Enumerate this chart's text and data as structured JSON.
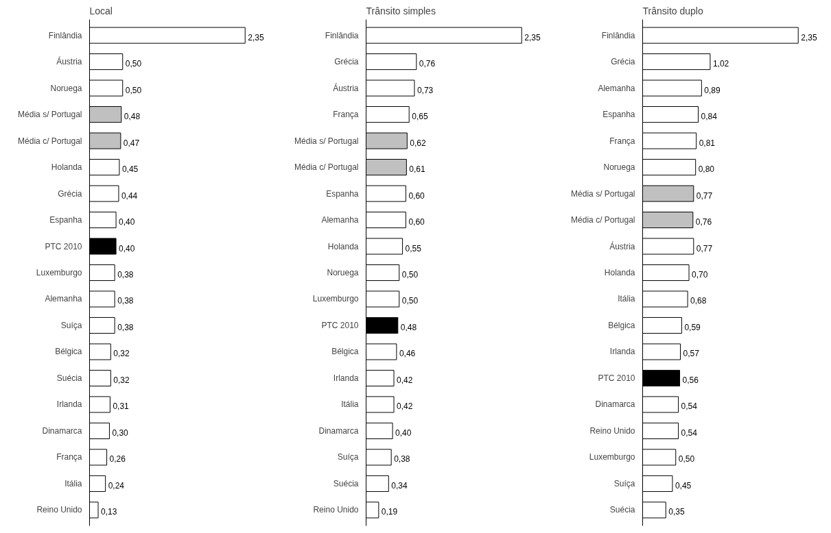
{
  "chart_data": [
    {
      "type": "bar",
      "orientation": "horizontal",
      "title": "Local",
      "categories": [
        "Finlândia",
        "Áustria",
        "Noruega",
        "Média s/ Portugal",
        "Média c/ Portugal",
        "Holanda",
        "Grécia",
        "Espanha",
        "PTC 2010",
        "Luxemburgo",
        "Alemanha",
        "Suíça",
        "Bélgica",
        "Suécia",
        "Irlanda",
        "Dinamarca",
        "França",
        "Itália",
        "Reino Unido"
      ],
      "values": [
        2.35,
        0.5,
        0.5,
        0.48,
        0.47,
        0.45,
        0.44,
        0.4,
        0.4,
        0.38,
        0.38,
        0.38,
        0.32,
        0.32,
        0.31,
        0.3,
        0.26,
        0.24,
        0.13
      ],
      "value_labels": [
        "2,35",
        "0,50",
        "0,50",
        "0,48",
        "0,47",
        "0,45",
        "0,44",
        "0,40",
        "0,40",
        "0,38",
        "0,38",
        "0,38",
        "0,32",
        "0,32",
        "0,31",
        "0,30",
        "0,26",
        "0,24",
        "0,13"
      ],
      "colors": [
        "#ffffff",
        "#ffffff",
        "#ffffff",
        "#c0c0c0",
        "#c0c0c0",
        "#ffffff",
        "#ffffff",
        "#ffffff",
        "#000000",
        "#ffffff",
        "#ffffff",
        "#ffffff",
        "#ffffff",
        "#ffffff",
        "#ffffff",
        "#ffffff",
        "#ffffff",
        "#ffffff",
        "#ffffff"
      ]
    },
    {
      "type": "bar",
      "orientation": "horizontal",
      "title": "Trânsito simples",
      "categories": [
        "Finlândia",
        "Grécia",
        "Áustria",
        "França",
        "Média s/ Portugal",
        "Média c/ Portugal",
        "Espanha",
        "Alemanha",
        "Holanda",
        "Noruega",
        "Luxemburgo",
        "PTC 2010",
        "Bélgica",
        "Irlanda",
        "Itália",
        "Dinamarca",
        "Suíça",
        "Suécia",
        "Reino Unido"
      ],
      "values": [
        2.35,
        0.76,
        0.73,
        0.65,
        0.62,
        0.61,
        0.6,
        0.6,
        0.55,
        0.5,
        0.5,
        0.48,
        0.46,
        0.42,
        0.42,
        0.4,
        0.38,
        0.34,
        0.19
      ],
      "value_labels": [
        "2,35",
        "0,76",
        "0,73",
        "0,65",
        "0,62",
        "0,61",
        "0,60",
        "0,60",
        "0,55",
        "0,50",
        "0,50",
        "0,48",
        "0,46",
        "0,42",
        "0,42",
        "0,40",
        "0,38",
        "0,34",
        "0,19"
      ],
      "colors": [
        "#ffffff",
        "#ffffff",
        "#ffffff",
        "#ffffff",
        "#c0c0c0",
        "#c0c0c0",
        "#ffffff",
        "#ffffff",
        "#ffffff",
        "#ffffff",
        "#ffffff",
        "#000000",
        "#ffffff",
        "#ffffff",
        "#ffffff",
        "#ffffff",
        "#ffffff",
        "#ffffff",
        "#ffffff"
      ]
    },
    {
      "type": "bar",
      "orientation": "horizontal",
      "title": "Trânsito duplo",
      "categories": [
        "Finlândia",
        "Grécia",
        "Alemanha",
        "Espanha",
        "França",
        "Noruega",
        "Média s/ Portugal",
        "Média c/ Portugal",
        "Áustria",
        "Holanda",
        "Itália",
        "Bélgica",
        "Irlanda",
        "PTC 2010",
        "Dinamarca",
        "Reino Unido",
        "Luxemburgo",
        "Suíça",
        "Suécia"
      ],
      "values": [
        2.35,
        1.02,
        0.89,
        0.84,
        0.81,
        0.8,
        0.77,
        0.76,
        0.77,
        0.7,
        0.68,
        0.59,
        0.57,
        0.56,
        0.54,
        0.54,
        0.5,
        0.45,
        0.35
      ],
      "value_labels": [
        "2,35",
        "1,02",
        "0,89",
        "0,84",
        "0,81",
        "0,80",
        "0,77",
        "0,76",
        "0,77",
        "0,70",
        "0,68",
        "0,59",
        "0,57",
        "0,56",
        "0,54",
        "0,54",
        "0,50",
        "0,45",
        "0,35"
      ],
      "colors": [
        "#ffffff",
        "#ffffff",
        "#ffffff",
        "#ffffff",
        "#ffffff",
        "#ffffff",
        "#c0c0c0",
        "#c0c0c0",
        "#ffffff",
        "#ffffff",
        "#ffffff",
        "#ffffff",
        "#ffffff",
        "#000000",
        "#ffffff",
        "#ffffff",
        "#ffffff",
        "#ffffff",
        "#ffffff"
      ]
    }
  ]
}
